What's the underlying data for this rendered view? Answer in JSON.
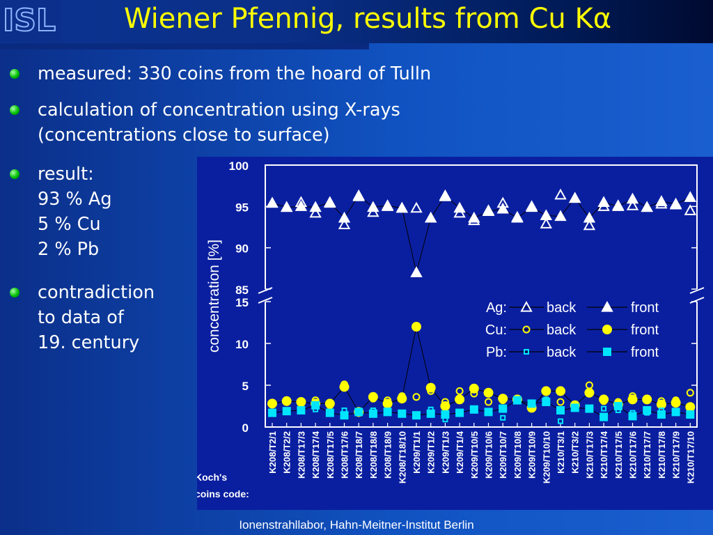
{
  "title": "Wiener Pfennig, results from Cu Kα",
  "logo_text": "ISL",
  "bullets": [
    {
      "lines": [
        "measured: 330 coins from the hoard of Tulln"
      ]
    },
    {
      "lines": [
        "calculation of concentration using X-rays",
        "(concentrations close to surface)"
      ]
    },
    {
      "lines": [
        "result:",
        "93 % Ag",
        "5 % Cu",
        "2 % Pb"
      ]
    },
    {
      "lines": [
        "contradiction",
        "to data of",
        "19. century"
      ]
    }
  ],
  "footer": "Ionenstrahllabor, Hahn-Meitner-Institut Berlin",
  "colors": {
    "title": "#ffff00",
    "bullet": "#00c000",
    "ag": "#ffffff",
    "cu": "#ffff00",
    "pb": "#00e5ff"
  },
  "chart_data": {
    "type": "scatter",
    "ylabel": "concentration [%]",
    "xlabel_note": "Koch's\ncoins code:",
    "y_upper": {
      "range": [
        85,
        100
      ],
      "ticks": [
        "85",
        "90",
        "95",
        "100"
      ]
    },
    "y_lower": {
      "range": [
        0,
        15
      ],
      "ticks": [
        "0",
        "5",
        "10",
        "15"
      ]
    },
    "categories": [
      "K208/T2/1",
      "K208/T2/2",
      "K208/T17/3",
      "K208/T17/4",
      "K208/T17/5",
      "K208/T17/6",
      "K208/T18/7",
      "K208/T18/8",
      "K208/T18/9",
      "K208/T18/10",
      "K209/T1/1",
      "K209/T1/2",
      "K209/T1/3",
      "K209/T1/4",
      "K209/T10/5",
      "K209/T10/6",
      "K209/T10/7",
      "K209/T10/8",
      "K209/T10/9",
      "K209/T10/10",
      "K210/T3/1",
      "K210/T3/2",
      "K210/T17/3",
      "K210/T17/4",
      "K210/T17/5",
      "K210/T17/6",
      "K210/T17/7",
      "K210/T17/8",
      "K210/T17/9",
      "K210/T17/10"
    ],
    "legend": {
      "rows": [
        {
          "element": "Ag:",
          "back": "back",
          "front": "front"
        },
        {
          "element": "Cu:",
          "back": "back",
          "front": "front"
        },
        {
          "element": "Pb:",
          "back": "back",
          "front": "front"
        }
      ]
    },
    "series": [
      {
        "name": "Ag back",
        "element": "Ag",
        "side": "back",
        "values": [
          95.4,
          94.9,
          95.5,
          94.2,
          95.4,
          92.8,
          96.2,
          94.3,
          95.0,
          94.8,
          94.8,
          93.6,
          96.2,
          94.2,
          93.3,
          94.5,
          95.4,
          93.7,
          95.0,
          92.9,
          96.4,
          96.0,
          92.7,
          95.0,
          95.1,
          95.1,
          94.9,
          95.3,
          95.2,
          94.5
        ]
      },
      {
        "name": "Ag front",
        "element": "Ag",
        "side": "front",
        "values": [
          95.4,
          94.9,
          95.0,
          94.9,
          95.5,
          93.6,
          96.3,
          94.9,
          95.1,
          94.8,
          87.0,
          93.6,
          96.3,
          94.8,
          93.6,
          94.4,
          94.7,
          93.6,
          94.9,
          93.9,
          93.8,
          96.0,
          93.6,
          95.5,
          95.0,
          95.9,
          94.9,
          95.6,
          95.3,
          96.1
        ]
      },
      {
        "name": "Cu back",
        "element": "Cu",
        "side": "back",
        "values": [
          2.8,
          3.2,
          3.1,
          3.2,
          2.6,
          5.1,
          1.8,
          3.4,
          3.2,
          3.7,
          3.6,
          4.3,
          3.0,
          4.3,
          4.0,
          3.0,
          3.2,
          3.3,
          2.6,
          3.2,
          3.0,
          2.4,
          5.0,
          3.1,
          3.0,
          3.7,
          3.2,
          3.1,
          3.2,
          4.1
        ]
      },
      {
        "name": "Cu front",
        "element": "Cu",
        "side": "front",
        "values": [
          2.8,
          3.1,
          3.0,
          2.8,
          2.8,
          4.8,
          1.8,
          3.6,
          2.8,
          3.4,
          12.0,
          4.7,
          2.5,
          3.3,
          4.6,
          4.1,
          3.4,
          3.3,
          2.3,
          4.3,
          4.3,
          2.6,
          4.1,
          3.3,
          2.7,
          3.3,
          3.3,
          2.7,
          2.9,
          2.4
        ]
      },
      {
        "name": "Pb back",
        "element": "Pb",
        "side": "back",
        "values": [
          1.8,
          1.8,
          1.9,
          2.1,
          1.7,
          2.0,
          1.9,
          2.0,
          2.0,
          1.5,
          1.5,
          2.1,
          0.9,
          1.6,
          2.1,
          1.9,
          1.1,
          3.1,
          2.8,
          3.3,
          0.7,
          2.4,
          2.3,
          2.2,
          2.0,
          1.7,
          1.7,
          2.0,
          1.8,
          1.5
        ]
      },
      {
        "name": "Pb front",
        "element": "Pb",
        "side": "front",
        "values": [
          1.7,
          1.9,
          2.0,
          2.6,
          1.7,
          1.4,
          1.8,
          1.6,
          1.8,
          1.6,
          1.4,
          1.6,
          1.5,
          1.7,
          2.1,
          1.8,
          2.2,
          3.2,
          2.8,
          3.0,
          2.0,
          2.3,
          2.2,
          1.2,
          2.5,
          1.3,
          2.0,
          1.5,
          1.8,
          1.5
        ]
      }
    ]
  }
}
